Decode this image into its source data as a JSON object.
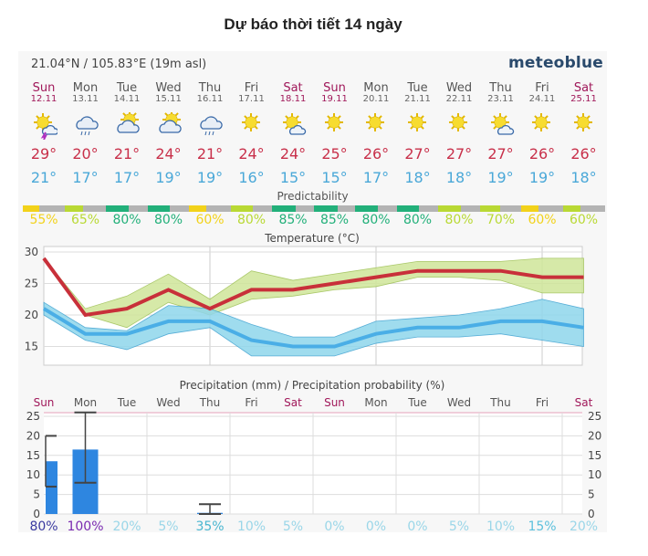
{
  "title": "Dự báo thời tiết 14 ngày",
  "location": "21.04°N / 105.83°E (19m asl)",
  "brand": "meteoblue",
  "days": [
    {
      "name": "Sun",
      "date": "12.11",
      "weekend": true,
      "icon": "sun-cloud-thunder-icon",
      "max": "29°",
      "min": "21°",
      "pred": 55,
      "pred_label": "55%",
      "pred_color": "#f2d21a"
    },
    {
      "name": "Mon",
      "date": "13.11",
      "weekend": false,
      "icon": "rain-cloud-icon",
      "max": "20°",
      "min": "17°",
      "pred": 65,
      "pred_label": "65%",
      "pred_color": "#b9d934"
    },
    {
      "name": "Tue",
      "date": "14.11",
      "weekend": false,
      "icon": "sun-cloud-icon",
      "max": "21°",
      "min": "17°",
      "pred": 80,
      "pred_label": "80%",
      "pred_color": "#22b07a"
    },
    {
      "name": "Wed",
      "date": "15.11",
      "weekend": false,
      "icon": "sun-cloud-icon",
      "max": "24°",
      "min": "19°",
      "pred": 80,
      "pred_label": "80%",
      "pred_color": "#22b07a"
    },
    {
      "name": "Thu",
      "date": "16.11",
      "weekend": false,
      "icon": "rain-cloud-icon",
      "max": "21°",
      "min": "19°",
      "pred": 60,
      "pred_label": "60%",
      "pred_color": "#f2d21a"
    },
    {
      "name": "Fri",
      "date": "17.11",
      "weekend": false,
      "icon": "sun-icon",
      "max": "24°",
      "min": "16°",
      "pred": 80,
      "pred_label": "80%",
      "pred_color": "#b9d934"
    },
    {
      "name": "Sat",
      "date": "18.11",
      "weekend": true,
      "icon": "sun-small-cloud-icon",
      "max": "24°",
      "min": "15°",
      "pred": 85,
      "pred_label": "85%",
      "pred_color": "#22b07a"
    },
    {
      "name": "Sun",
      "date": "19.11",
      "weekend": true,
      "icon": "sun-icon",
      "max": "25°",
      "min": "15°",
      "pred": 85,
      "pred_label": "85%",
      "pred_color": "#22b07a"
    },
    {
      "name": "Mon",
      "date": "20.11",
      "weekend": false,
      "icon": "sun-icon",
      "max": "26°",
      "min": "17°",
      "pred": 80,
      "pred_label": "80%",
      "pred_color": "#22b07a"
    },
    {
      "name": "Tue",
      "date": "21.11",
      "weekend": false,
      "icon": "sun-icon",
      "max": "27°",
      "min": "18°",
      "pred": 80,
      "pred_label": "80%",
      "pred_color": "#22b07a"
    },
    {
      "name": "Wed",
      "date": "22.11",
      "weekend": false,
      "icon": "sun-icon",
      "max": "27°",
      "min": "18°",
      "pred": 80,
      "pred_label": "80%",
      "pred_color": "#b9d934"
    },
    {
      "name": "Thu",
      "date": "23.11",
      "weekend": false,
      "icon": "sun-small-cloud-icon",
      "max": "27°",
      "min": "19°",
      "pred": 70,
      "pred_label": "70%",
      "pred_color": "#b9d934"
    },
    {
      "name": "Fri",
      "date": "24.11",
      "weekend": false,
      "icon": "sun-icon",
      "max": "26°",
      "min": "19°",
      "pred": 60,
      "pred_label": "60%",
      "pred_color": "#f2d21a"
    },
    {
      "name": "Sat",
      "date": "25.11",
      "weekend": true,
      "icon": "sun-icon",
      "max": "26°",
      "min": "18°",
      "pred": 60,
      "pred_label": "60%",
      "pred_color": "#b9d934"
    }
  ],
  "predictability_label": "Predictability",
  "chart_data": [
    {
      "type": "line",
      "title": "Temperature (°C)",
      "ylim": [
        13,
        30
      ],
      "yticks": [
        "15",
        "20",
        "25",
        "30"
      ],
      "series": [
        {
          "name": "max",
          "color": "#c8303a",
          "values": [
            29,
            20,
            21,
            24,
            21,
            24,
            24,
            25,
            26,
            27,
            27,
            27,
            26,
            26
          ],
          "band": [
            [
              29,
              29
            ],
            [
              21,
              20
            ],
            [
              23,
              18
            ],
            [
              26.5,
              22
            ],
            [
              22.5,
              20
            ],
            [
              27,
              22.5
            ],
            [
              25.5,
              23
            ],
            [
              26.5,
              24
            ],
            [
              27.5,
              24.5
            ],
            [
              28.5,
              26
            ],
            [
              28.5,
              26
            ],
            [
              28.5,
              25.5
            ],
            [
              29,
              23.5
            ],
            [
              29,
              23.5
            ]
          ]
        },
        {
          "name": "min",
          "color": "#4aaee6",
          "values": [
            21,
            17,
            17,
            19,
            19,
            16,
            15,
            15,
            17,
            18,
            18,
            19,
            19,
            18
          ],
          "band": [
            [
              22,
              20
            ],
            [
              18,
              16
            ],
            [
              17.5,
              14.5
            ],
            [
              21.5,
              17
            ],
            [
              21,
              18
            ],
            [
              18.5,
              13.5
            ],
            [
              16.5,
              13.5
            ],
            [
              16.5,
              13.5
            ],
            [
              19,
              15.5
            ],
            [
              19.5,
              16.5
            ],
            [
              20,
              16.5
            ],
            [
              21,
              17
            ],
            [
              22.5,
              16
            ],
            [
              21,
              15
            ]
          ]
        }
      ]
    },
    {
      "type": "bar",
      "title": "Precipitation (mm) / Precipitation probability (%)",
      "ylim": [
        0,
        26
      ],
      "yticks": [
        "0",
        "5",
        "10",
        "15",
        "20",
        "25"
      ],
      "categories": [
        "Sun",
        "Mon",
        "Tue",
        "Wed",
        "Thu",
        "Fri",
        "Sat",
        "Sun",
        "Mon",
        "Tue",
        "Wed",
        "Thu",
        "Fri",
        "Sat"
      ],
      "values": [
        13.5,
        16.5,
        0,
        0,
        0.3,
        0,
        0,
        0,
        0,
        0,
        0,
        0,
        0,
        0
      ],
      "ranges": [
        [
          7,
          20
        ],
        [
          8,
          26
        ],
        null,
        null,
        [
          0,
          2.5
        ],
        null,
        null,
        null,
        null,
        null,
        null,
        null,
        null,
        null
      ],
      "probability": [
        "80%",
        "100%",
        "20%",
        "5%",
        "35%",
        "10%",
        "5%",
        "0%",
        "0%",
        "0%",
        "5%",
        "10%",
        "15%",
        "20%"
      ],
      "probability_colors": [
        "#3a3aa0",
        "#7a2ab0",
        "#9ad6e8",
        "#9ad6e8",
        "#4ab6d0",
        "#9ad6e8",
        "#9ad6e8",
        "#9ad6e8",
        "#9ad6e8",
        "#9ad6e8",
        "#9ad6e8",
        "#9ad6e8",
        "#5cc0dc",
        "#9ad6e8"
      ]
    }
  ]
}
